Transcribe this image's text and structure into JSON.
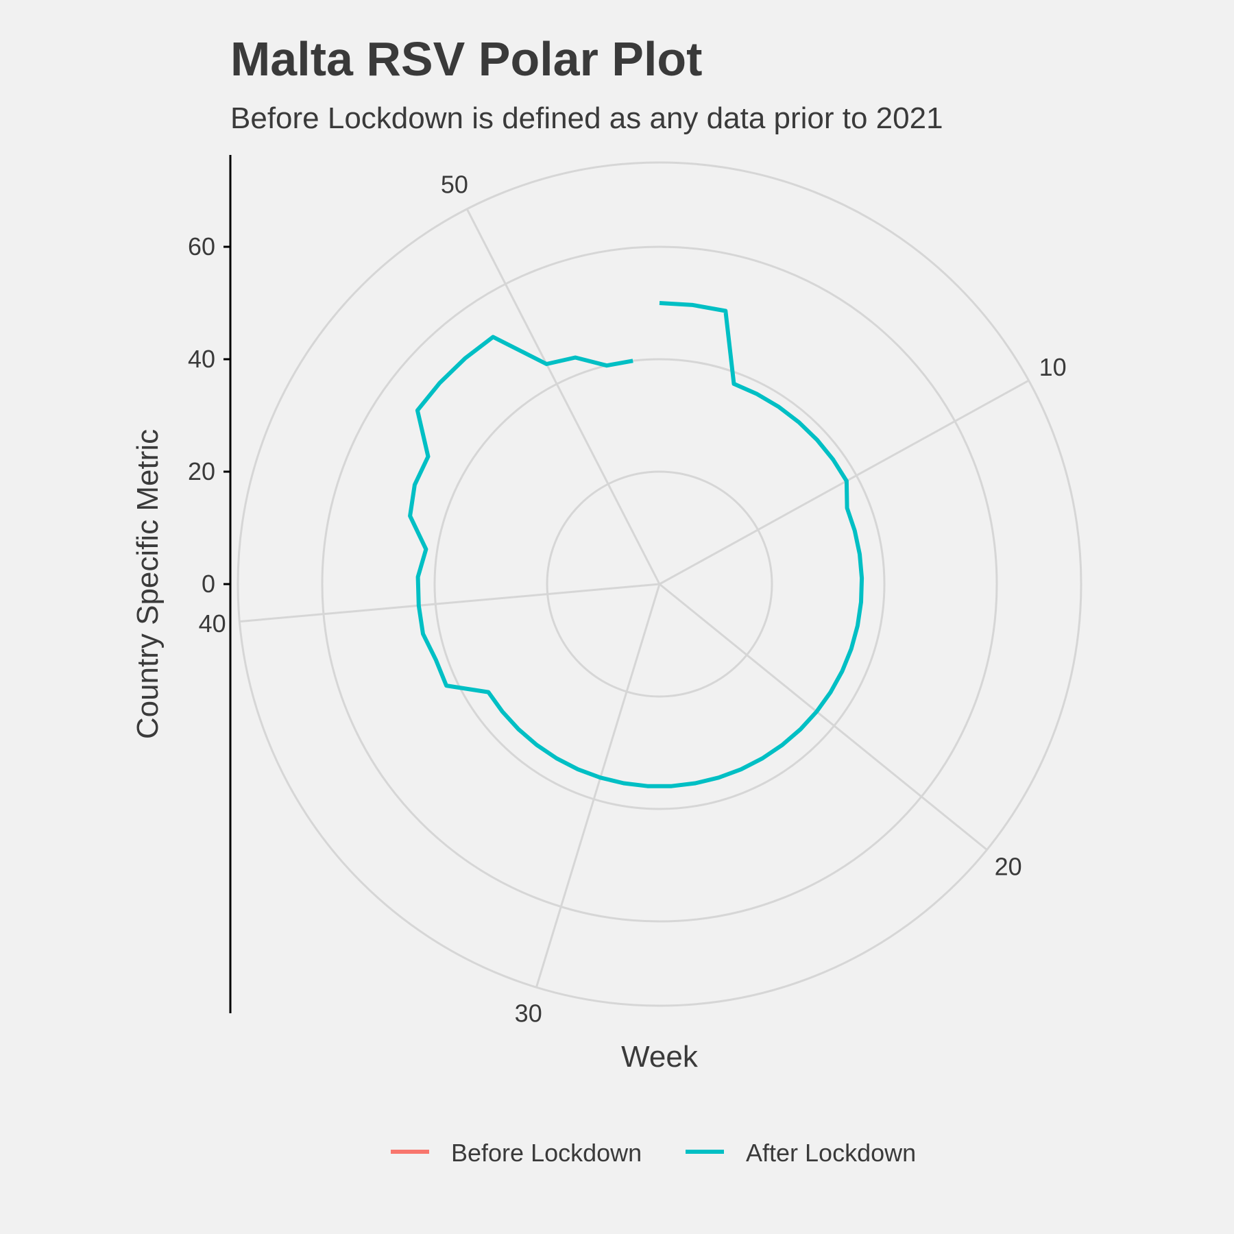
{
  "chart_data": {
    "type": "line",
    "coordinate_system": "polar",
    "title": "Malta RSV Polar Plot",
    "subtitle": "Before Lockdown is defined as any data prior to 2021",
    "xlabel": "Week",
    "ylabel": "Country Specific Metric",
    "y_ticks": [
      0,
      20,
      40,
      60
    ],
    "y_range": [
      0,
      75
    ],
    "angular_ticks": [
      10,
      20,
      30,
      40,
      50
    ],
    "angular_range": [
      1,
      53
    ],
    "grid": true,
    "legend_position": "bottom",
    "series": [
      {
        "name": "Before Lockdown",
        "color": "#F8766D",
        "x": [],
        "y": []
      },
      {
        "name": "After Lockdown",
        "color": "#00BFC4",
        "x": [
          1,
          2,
          3,
          4,
          5,
          6,
          7,
          8,
          9,
          10,
          11,
          12,
          13,
          14,
          15,
          16,
          17,
          18,
          19,
          20,
          21,
          22,
          23,
          24,
          25,
          26,
          27,
          28,
          29,
          30,
          31,
          32,
          33,
          34,
          35,
          36,
          37,
          38,
          39,
          40,
          41,
          42,
          43,
          44,
          45,
          46,
          47,
          48,
          49,
          50,
          51,
          52,
          53
        ],
        "y": [
          50,
          50,
          50,
          38,
          38,
          38,
          38,
          38,
          38,
          38,
          36,
          36,
          36,
          36,
          36,
          36,
          36,
          36,
          36,
          36,
          36,
          36,
          36,
          36,
          36,
          36,
          36,
          36,
          36,
          36,
          36,
          36,
          36,
          36,
          36,
          36,
          42,
          42,
          43,
          43,
          43,
          42,
          46,
          47,
          47,
          53,
          53,
          53,
          53,
          44,
          43,
          40,
          40
        ]
      }
    ]
  }
}
